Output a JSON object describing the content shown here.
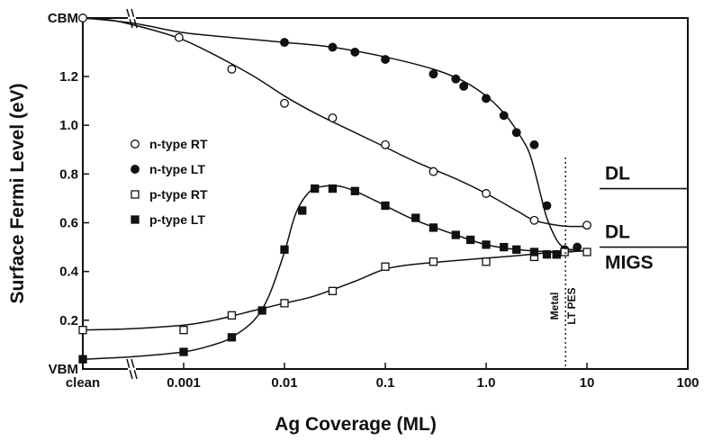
{
  "chart_data": {
    "type": "scatter",
    "xlabel": "Ag Coverage (ML)",
    "ylabel": "Surface Fermi Level (eV)",
    "x_scale": "log",
    "xlim": [
      0.0001,
      100
    ],
    "ylim": [
      0,
      1.44
    ],
    "x_ticks": [
      {
        "value": 0.0001,
        "label": "clean"
      },
      {
        "value": 0.001,
        "label": "0.001"
      },
      {
        "value": 0.01,
        "label": "0.01"
      },
      {
        "value": 0.1,
        "label": "0.1"
      },
      {
        "value": 1,
        "label": "1.0"
      },
      {
        "value": 10,
        "label": "10"
      },
      {
        "value": 100,
        "label": "100"
      }
    ],
    "y_ticks": [
      {
        "value": 0,
        "label": "VBM"
      },
      {
        "value": 0.2,
        "label": "0.2"
      },
      {
        "value": 0.4,
        "label": "0.4"
      },
      {
        "value": 0.6,
        "label": "0.6"
      },
      {
        "value": 0.8,
        "label": "0.8"
      },
      {
        "value": 1.0,
        "label": "1.0"
      },
      {
        "value": 1.2,
        "label": "1.2"
      },
      {
        "value": 1.44,
        "label": "CBM"
      }
    ],
    "legend_position": "center-left",
    "series": [
      {
        "name": "n-type RT",
        "marker": "open-circle",
        "x": [
          0.0001,
          0.0009,
          0.003,
          0.01,
          0.03,
          0.1,
          0.3,
          1.0,
          3.0,
          10
        ],
        "y": [
          1.44,
          1.36,
          1.23,
          1.09,
          1.03,
          0.92,
          0.81,
          0.72,
          0.61,
          0.59
        ],
        "fit_x": [
          0.0001,
          0.0002,
          0.0005,
          0.001,
          0.002,
          0.005,
          0.01,
          0.02,
          0.05,
          0.1,
          0.2,
          0.5,
          1.0,
          2.0,
          3.0,
          5.0,
          7.0,
          10
        ],
        "fit_y": [
          1.44,
          1.43,
          1.39,
          1.35,
          1.29,
          1.2,
          1.12,
          1.05,
          0.97,
          0.91,
          0.85,
          0.78,
          0.72,
          0.65,
          0.61,
          0.59,
          0.585,
          0.585
        ]
      },
      {
        "name": "n-type LT",
        "marker": "filled-circle",
        "x": [
          0.01,
          0.03,
          0.05,
          0.1,
          0.3,
          0.5,
          0.6,
          1.0,
          1.5,
          2.0,
          3.0,
          4.0,
          6.0,
          8.0
        ],
        "y": [
          1.34,
          1.32,
          1.3,
          1.27,
          1.21,
          1.19,
          1.16,
          1.11,
          1.04,
          0.97,
          0.92,
          0.67,
          0.49,
          0.5
        ],
        "fit_x": [
          0.0001,
          0.0003,
          0.001,
          0.003,
          0.01,
          0.03,
          0.1,
          0.3,
          0.6,
          1.0,
          1.5,
          2.0,
          2.6,
          3.0,
          3.5,
          4.0,
          5.0,
          6.0,
          7.0,
          8.0
        ],
        "fit_y": [
          1.44,
          1.42,
          1.38,
          1.36,
          1.34,
          1.32,
          1.28,
          1.23,
          1.18,
          1.12,
          1.05,
          0.98,
          0.9,
          0.82,
          0.71,
          0.62,
          0.53,
          0.495,
          0.49,
          0.49
        ]
      },
      {
        "name": "p-type RT",
        "marker": "open-square",
        "x": [
          0.0001,
          0.001,
          0.003,
          0.01,
          0.03,
          0.1,
          0.3,
          1.0,
          3.0,
          5.0,
          6.0,
          10
        ],
        "y": [
          0.16,
          0.16,
          0.22,
          0.27,
          0.32,
          0.42,
          0.44,
          0.44,
          0.46,
          0.47,
          0.48,
          0.48
        ],
        "fit_x": [
          0.0001,
          0.0003,
          0.001,
          0.002,
          0.005,
          0.01,
          0.02,
          0.05,
          0.1,
          0.2,
          0.5,
          1.0,
          2.0,
          5.0,
          10
        ],
        "fit_y": [
          0.16,
          0.165,
          0.18,
          0.2,
          0.24,
          0.27,
          0.3,
          0.36,
          0.41,
          0.43,
          0.445,
          0.455,
          0.465,
          0.48,
          0.485
        ]
      },
      {
        "name": "p-type LT",
        "marker": "filled-square",
        "x": [
          0.0001,
          0.001,
          0.003,
          0.006,
          0.01,
          0.015,
          0.02,
          0.03,
          0.05,
          0.1,
          0.2,
          0.3,
          0.5,
          0.7,
          1.0,
          1.5,
          2.0,
          3.0,
          4.0,
          5.0
        ],
        "y": [
          0.04,
          0.07,
          0.13,
          0.24,
          0.49,
          0.65,
          0.74,
          0.74,
          0.73,
          0.67,
          0.62,
          0.58,
          0.55,
          0.53,
          0.51,
          0.5,
          0.49,
          0.48,
          0.47,
          0.47
        ],
        "fit_x": [
          0.0001,
          0.0003,
          0.001,
          0.002,
          0.003,
          0.005,
          0.007,
          0.01,
          0.013,
          0.018,
          0.025,
          0.035,
          0.05,
          0.08,
          0.1,
          0.2,
          0.5,
          1.0,
          2.0,
          5.0,
          10
        ],
        "fit_y": [
          0.04,
          0.05,
          0.07,
          0.1,
          0.13,
          0.2,
          0.3,
          0.48,
          0.64,
          0.73,
          0.75,
          0.75,
          0.73,
          0.69,
          0.67,
          0.61,
          0.55,
          0.51,
          0.49,
          0.48,
          0.485
        ]
      }
    ],
    "annotations": [
      {
        "text": "DL",
        "y": 0.74
      },
      {
        "text": "DL",
        "y": 0.5
      },
      {
        "text": "MIGS",
        "y": 0.5
      },
      {
        "text": "Metal",
        "x": 6
      },
      {
        "text": "LT PES",
        "x": 6
      }
    ]
  }
}
